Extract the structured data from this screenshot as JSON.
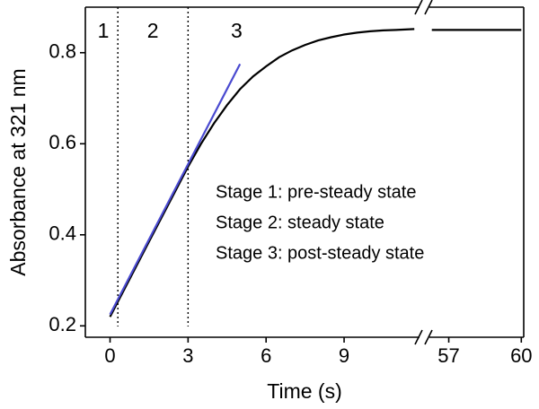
{
  "chart_data": {
    "type": "line",
    "xlabel": "Time (s)",
    "ylabel": "Absorbance at 321 nm",
    "x_segments": [
      {
        "xlim": [
          -0.95,
          11.9
        ],
        "xticks": [
          0,
          3,
          6,
          9
        ]
      },
      {
        "xlim": [
          56.2,
          60.1
        ],
        "xticks": [
          57,
          60
        ]
      }
    ],
    "ylim": [
      0.175,
      0.9
    ],
    "yticks": [
      0.2,
      0.4,
      0.6,
      0.8
    ],
    "series": [
      {
        "color": "#000000",
        "x": [
          0,
          0.5,
          1,
          1.5,
          2,
          2.5,
          3,
          3.5,
          4,
          4.5,
          5,
          5.5,
          6,
          6.5,
          7,
          7.5,
          8,
          8.5,
          9,
          9.5,
          10,
          10.5,
          11,
          11.7,
          30,
          56.3,
          57,
          58,
          59,
          60
        ],
        "values": [
          0.22,
          0.275,
          0.33,
          0.385,
          0.44,
          0.495,
          0.55,
          0.6,
          0.645,
          0.685,
          0.72,
          0.748,
          0.77,
          0.79,
          0.805,
          0.817,
          0.827,
          0.834,
          0.84,
          0.844,
          0.847,
          0.849,
          0.85,
          0.852,
          null,
          0.85,
          0.85,
          0.85,
          0.85,
          0.85
        ]
      },
      {
        "color": "#4a4ad0",
        "x": [
          0,
          5
        ],
        "values": [
          0.225,
          0.775
        ]
      }
    ],
    "stage_boundaries": [
      0.3,
      3
    ],
    "stage_labels": [
      "1",
      "2",
      "3"
    ],
    "annotations": [
      "Stage 1: pre-steady state",
      "Stage 2: steady state",
      "Stage 3: post-steady state"
    ]
  }
}
